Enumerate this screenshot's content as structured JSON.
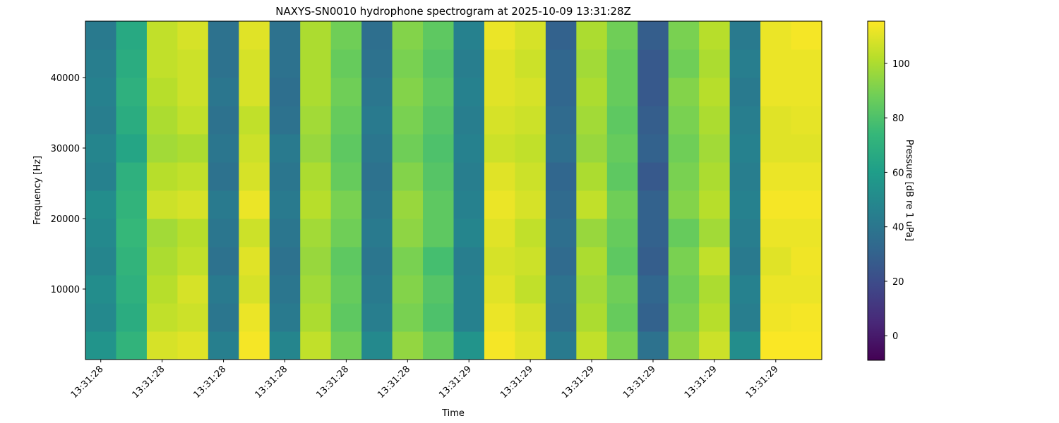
{
  "chart_data": {
    "type": "heatmap",
    "title": "NAXYS-SN0010 hydrophone spectrogram at 2025-10-09 13:31:28Z",
    "xlabel": "Time",
    "ylabel": "Frequency [Hz]",
    "xlim": [
      0,
      24
    ],
    "xticks": [
      {
        "value": 0.5,
        "label": "13:31:28"
      },
      {
        "value": 2.5,
        "label": "13:31:28"
      },
      {
        "value": 4.5,
        "label": "13:31:28"
      },
      {
        "value": 6.5,
        "label": "13:31:28"
      },
      {
        "value": 8.5,
        "label": "13:31:28"
      },
      {
        "value": 10.5,
        "label": "13:31:28"
      },
      {
        "value": 12.5,
        "label": "13:31:29"
      },
      {
        "value": 14.5,
        "label": "13:31:29"
      },
      {
        "value": 16.5,
        "label": "13:31:29"
      },
      {
        "value": 18.5,
        "label": "13:31:29"
      },
      {
        "value": 20.5,
        "label": "13:31:29"
      },
      {
        "value": 22.5,
        "label": "13:31:29"
      }
    ],
    "ylim": [
      0,
      48000
    ],
    "yticks": [
      10000,
      20000,
      30000,
      40000
    ],
    "colormap": [
      "#440154",
      "#482878",
      "#3e4989",
      "#31688e",
      "#26828e",
      "#1f9e89",
      "#35b779",
      "#6ece58",
      "#b5de2b",
      "#fde725"
    ],
    "colorbar": {
      "label": "Pressure [dB re 1 uPa]",
      "lim": [
        -9,
        115.5
      ],
      "ticks": [
        0,
        20,
        40,
        60,
        80,
        100
      ]
    },
    "values": [
      [
        55,
        72,
        108,
        110,
        45,
        114,
        48,
        104,
        88,
        50,
        95,
        86,
        55,
        114,
        110,
        42,
        104,
        90,
        38,
        94,
        106,
        52,
        115,
        115
      ],
      [
        50,
        68,
        104,
        106,
        40,
        112,
        42,
        100,
        84,
        44,
        90,
        80,
        46,
        112,
        108,
        36,
        100,
        86,
        30,
        90,
        102,
        44,
        113,
        114
      ],
      [
        52,
        70,
        102,
        108,
        42,
        108,
        40,
        98,
        86,
        42,
        92,
        82,
        46,
        110,
        104,
        38,
        98,
        88,
        32,
        88,
        100,
        46,
        112,
        112
      ],
      [
        48,
        72,
        100,
        104,
        38,
        110,
        38,
        96,
        84,
        40,
        90,
        78,
        44,
        108,
        106,
        34,
        100,
        84,
        28,
        90,
        104,
        42,
        110,
        113
      ],
      [
        50,
        74,
        98,
        102,
        40,
        106,
        40,
        98,
        88,
        42,
        94,
        84,
        48,
        110,
        104,
        36,
        96,
        86,
        30,
        86,
        98,
        44,
        112,
        112
      ],
      [
        52,
        72,
        106,
        108,
        42,
        112,
        42,
        102,
        90,
        40,
        96,
        84,
        46,
        112,
        108,
        34,
        104,
        88,
        30,
        92,
        102,
        46,
        114,
        114
      ],
      [
        46,
        70,
        102,
        104,
        38,
        108,
        40,
        100,
        86,
        38,
        92,
        82,
        44,
        110,
        106,
        32,
        100,
        84,
        26,
        90,
        100,
        44,
        112,
        112
      ],
      [
        48,
        64,
        98,
        100,
        40,
        106,
        42,
        96,
        84,
        40,
        88,
        80,
        46,
        106,
        104,
        36,
        96,
        86,
        30,
        88,
        98,
        46,
        110,
        110
      ],
      [
        44,
        68,
        100,
        104,
        38,
        104,
        38,
        98,
        86,
        42,
        90,
        82,
        44,
        108,
        106,
        34,
        98,
        84,
        28,
        90,
        100,
        44,
        110,
        111
      ],
      [
        46,
        70,
        102,
        106,
        40,
        108,
        36,
        100,
        88,
        40,
        92,
        84,
        46,
        110,
        108,
        32,
        100,
        86,
        26,
        92,
        102,
        42,
        112,
        112
      ],
      [
        44,
        68,
        104,
        106,
        38,
        108,
        38,
        100,
        86,
        38,
        90,
        82,
        44,
        110,
        106,
        32,
        98,
        86,
        26,
        88,
        100,
        44,
        112,
        112
      ],
      [
        42,
        66,
        104,
        108,
        38,
        110,
        38,
        100,
        88,
        36,
        92,
        84,
        46,
        112,
        108,
        30,
        100,
        88,
        28,
        90,
        102,
        42,
        112,
        114
      ]
    ]
  }
}
